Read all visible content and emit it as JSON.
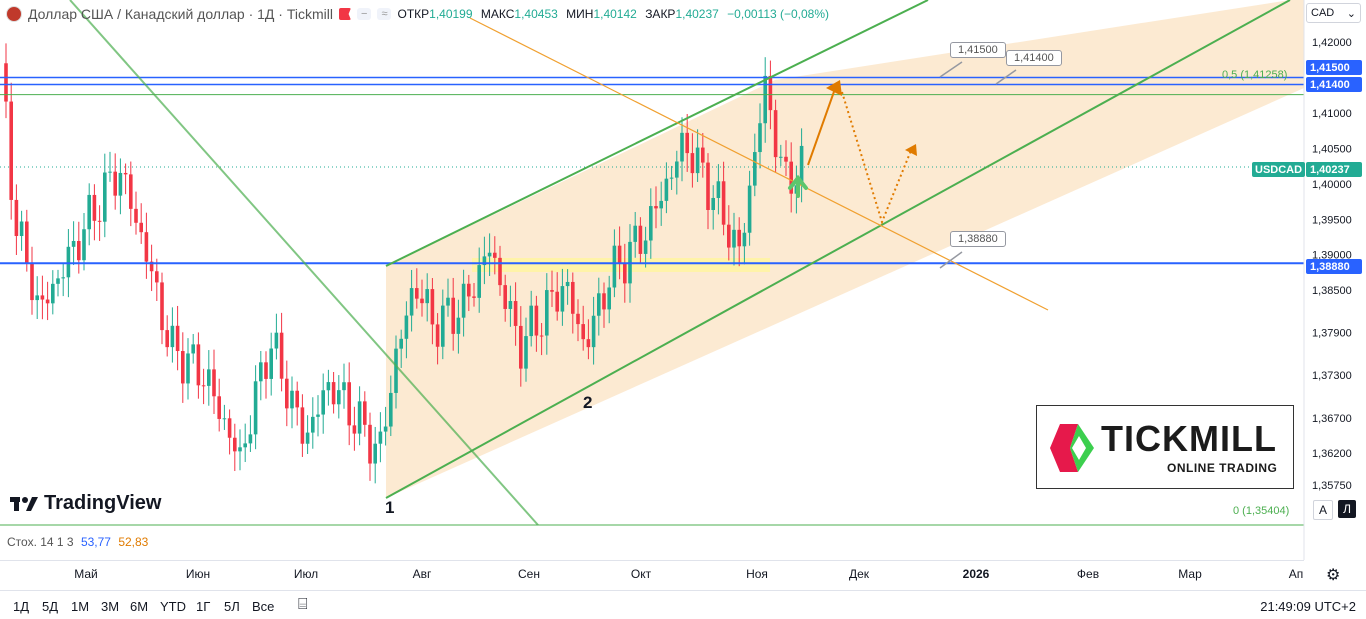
{
  "header": {
    "title": "Доллар США / Канадский доллар · 1Д · Tickmill",
    "badge": "≈",
    "ohlc": {
      "open_label": "ОТКР",
      "open": "1,40199",
      "high_label": "МАКС",
      "high": "1,40453",
      "low_label": "МИН",
      "low": "1,40142",
      "close_label": "ЗАКР",
      "close": "1,40237",
      "change": "−0,00113 (−0,08%)"
    }
  },
  "currency_button": "CAD",
  "price_tags": {
    "top1": "1,41500",
    "top2": "1,41400",
    "current": "1,40237",
    "bottom": "1,38880",
    "pair": "USDCAD"
  },
  "callouts": {
    "c1": "1,41500",
    "c2": "1,41400",
    "c3": "1,38880"
  },
  "fib_labels": {
    "top": "0,5 (1,41258)",
    "bottom": "0 (1,35404)"
  },
  "wave_labels": {
    "one": "1",
    "two": "2"
  },
  "branding": {
    "tradingview": "TradingView",
    "tickmill_name": "TICKMILL",
    "tickmill_sub": "ONLINE TRADING"
  },
  "stoch": {
    "label": "Стох. 14 1 3",
    "k": "53,77",
    "d": "52,83"
  },
  "time_axis": [
    "Май",
    "Июн",
    "Июл",
    "Авг",
    "Сен",
    "Окт",
    "Ноя",
    "Дек",
    "2026",
    "Фев",
    "Мар",
    "Ап"
  ],
  "toolbar": {
    "ranges": [
      "1Д",
      "5Д",
      "1М",
      "3М",
      "6М",
      "YTD",
      "1Г",
      "5Л",
      "Все"
    ],
    "clock": "21:49:09 UTC+2"
  },
  "mini_buttons": {
    "auto": "A",
    "log": "Л"
  },
  "colors": {
    "up": "#22ab94",
    "down": "#f23645",
    "channel": "#4caf50",
    "level": "#2962ff",
    "fill": "#fbe3c3",
    "highlight": "#fff59d",
    "arrow": "#e07b00"
  },
  "chart_data": {
    "type": "candlestick",
    "title": "Доллар США / Канадский доллар · 1Д · Tickmill",
    "symbol": "USDCAD",
    "timeframe": "1Д",
    "y_ticks": [
      "1,42000",
      "1,41000",
      "1,40500",
      "1,40000",
      "1,39500",
      "1,39000",
      "1,38500",
      "1,37900",
      "1,37300",
      "1,36700",
      "1,36200",
      "1,35750"
    ],
    "y_tick_values": [
      1.42,
      1.41,
      1.405,
      1.4,
      1.395,
      1.39,
      1.385,
      1.379,
      1.373,
      1.367,
      1.362,
      1.3575
    ],
    "ylim": [
      1.355,
      1.4225
    ],
    "x_labels": [
      "Май",
      "Июн",
      "Июл",
      "Авг",
      "Сен",
      "Окт",
      "Ноя",
      "Дек",
      "2026",
      "Фев",
      "Мар",
      "Ап"
    ],
    "levels": [
      1.415,
      1.414,
      1.41258,
      1.3888,
      1.40237
    ],
    "last_close": 1.40237,
    "grid": false
  }
}
